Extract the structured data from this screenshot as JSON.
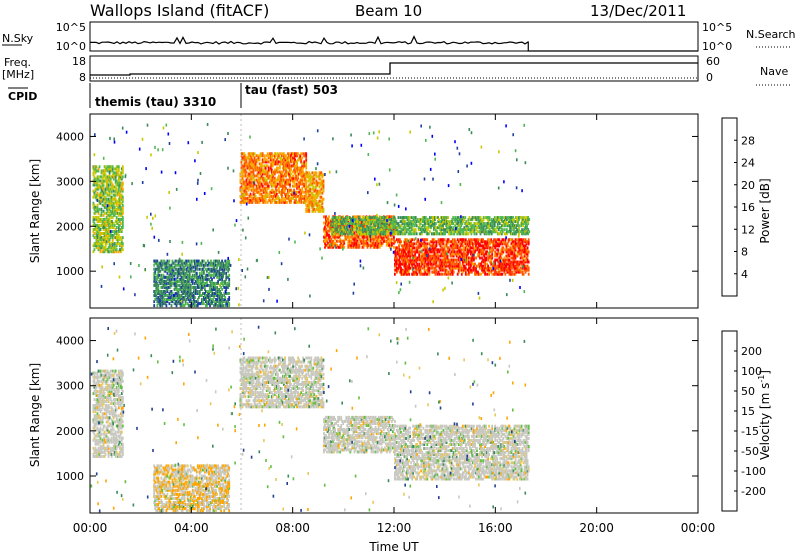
{
  "header": {
    "station": "Wallops Island (fitACF)",
    "beam": "Beam 10",
    "date": "13/Dec/2011"
  },
  "panels": {
    "nsky_label": "N.Sky",
    "nsearch_label": "N.Search",
    "nsky_ticks": [
      "10^5",
      "10^0"
    ],
    "nsearch_ticks": [
      "10^5",
      "10^0"
    ],
    "freq_label_1": "Freq.",
    "freq_label_2": "[MHz]",
    "freq_ticks": [
      "18",
      "8"
    ],
    "nave_label": "Nave",
    "nave_ticks": [
      "60",
      "0"
    ],
    "cpid_label": "CPID",
    "cpid_modes": [
      {
        "label": "themis (tau) 3310",
        "start_h": 0
      },
      {
        "label": "tau (fast) 503",
        "start_h": 6
      }
    ]
  },
  "power_panel": {
    "ylabel": "Slant Range [km]",
    "yticks": [
      "1000",
      "2000",
      "3000",
      "4000"
    ],
    "colorbar_label": "Power [dB]",
    "colorbar_ticks": [
      "4",
      "8",
      "12",
      "16",
      "20",
      "24",
      "28"
    ],
    "colors": [
      "#0000ff",
      "#2040a0",
      "#3a8a5a",
      "#50b850",
      "#c8c800",
      "#ffa500",
      "#ff5a00",
      "#ff0000"
    ]
  },
  "velocity_panel": {
    "ylabel": "Slant Range [km]",
    "yticks": [
      "1000",
      "2000",
      "3000",
      "4000"
    ],
    "colorbar_label": "Velocity [m s^-1]",
    "colorbar_ticks": [
      "-200",
      "-100",
      "-50",
      "-15",
      "15",
      "50",
      "100",
      "200"
    ],
    "colors": [
      "#ff0000",
      "#ff5a00",
      "#ffa500",
      "#e8c85a",
      "#c8c8c0",
      "#60c040",
      "#3a8a5a",
      "#204090",
      "#0000ff"
    ]
  },
  "xaxis": {
    "label": "Time UT",
    "ticks": [
      "00:00",
      "04:00",
      "08:00",
      "12:00",
      "16:00",
      "20:00",
      "00:00"
    ]
  },
  "chart_data": [
    {
      "type": "heatmap",
      "title": "Wallops Island (fitACF) Beam 10 13/Dec/2011",
      "xlabel": "Time UT",
      "ylabel": "Slant Range [km]",
      "xlim_h": [
        0,
        24
      ],
      "ylim": [
        180,
        4500
      ],
      "colorbar": "Power [dB]",
      "data_end_h": 17.3,
      "regions": [
        {
          "t0": 5.9,
          "t1": 8.5,
          "r0": 2500,
          "r1": 3600,
          "value": 24
        },
        {
          "t0": 8.5,
          "t1": 9.2,
          "r0": 2300,
          "r1": 3200,
          "value": 22
        },
        {
          "t0": 9.2,
          "t1": 12.0,
          "r0": 1500,
          "r1": 2200,
          "value": 26
        },
        {
          "t0": 12.0,
          "t1": 17.3,
          "r0": 900,
          "r1": 1700,
          "value": 28
        },
        {
          "t0": 0.1,
          "t1": 1.3,
          "r0": 1400,
          "r1": 3300,
          "value": 16
        },
        {
          "t0": 2.5,
          "t1": 5.5,
          "r0": 200,
          "r1": 1200,
          "value": 10
        },
        {
          "t0": 9.5,
          "t1": 17.3,
          "r0": 1800,
          "r1": 2200,
          "value": 14
        }
      ]
    },
    {
      "type": "heatmap",
      "title": "",
      "xlabel": "Time UT",
      "ylabel": "Slant Range [km]",
      "xlim_h": [
        0,
        24
      ],
      "ylim": [
        180,
        4500
      ],
      "colorbar": "Velocity [m s^-1]",
      "data_end_h": 17.3,
      "regions": [
        {
          "t0": 5.9,
          "t1": 9.2,
          "r0": 2500,
          "r1": 3600,
          "value": 0
        },
        {
          "t0": 9.2,
          "t1": 12.0,
          "r0": 1500,
          "r1": 2300,
          "value": 0
        },
        {
          "t0": 12.0,
          "t1": 17.3,
          "r0": 900,
          "r1": 2100,
          "value": 0
        },
        {
          "t0": 0.1,
          "t1": 1.3,
          "r0": 1400,
          "r1": 3300,
          "value": 0
        },
        {
          "t0": 2.5,
          "t1": 5.5,
          "r0": 200,
          "r1": 1200,
          "value": -20
        }
      ]
    }
  ]
}
